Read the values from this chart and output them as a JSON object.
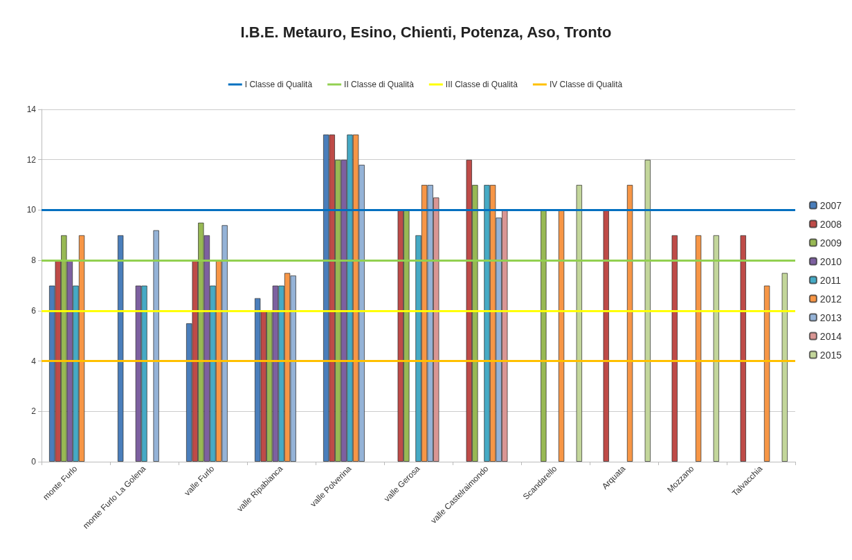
{
  "chart_data": {
    "type": "bar",
    "title": "I.B.E. Metauro, Esino, Chienti, Potenza, Aso, Tronto",
    "categories": [
      "monte Furlo",
      "monte Furlo La Golena",
      "valle Furlo",
      "valle Ripabianca",
      "valle Polverina",
      "valle Gerosa",
      "valle Castelraimondo",
      "Scandarello",
      "Arquata",
      "Mozzano",
      "Talvacchia"
    ],
    "series": [
      {
        "name": "2007",
        "color": "#4a7ebb",
        "values": [
          7,
          9,
          5.5,
          6.5,
          13,
          null,
          null,
          null,
          null,
          null,
          null
        ]
      },
      {
        "name": "2008",
        "color": "#be4b48",
        "values": [
          8,
          null,
          8,
          6,
          13,
          10,
          12,
          null,
          10,
          9,
          9
        ]
      },
      {
        "name": "2009",
        "color": "#98b954",
        "values": [
          9,
          null,
          9.5,
          6,
          12,
          10,
          11,
          10,
          null,
          null,
          null
        ]
      },
      {
        "name": "2010",
        "color": "#7d60a0",
        "values": [
          8,
          7,
          9,
          7,
          12,
          null,
          null,
          null,
          null,
          null,
          null
        ]
      },
      {
        "name": "2011",
        "color": "#46aac5",
        "values": [
          7,
          7,
          7,
          7,
          13,
          9,
          11,
          null,
          null,
          null,
          null
        ]
      },
      {
        "name": "2012",
        "color": "#f79646",
        "values": [
          9,
          null,
          8,
          7.5,
          13,
          11,
          11,
          10,
          11,
          9,
          7
        ]
      },
      {
        "name": "2013",
        "color": "#95b3d7",
        "values": [
          null,
          9.2,
          9.4,
          7.4,
          11.8,
          11,
          9.7,
          null,
          null,
          null,
          null
        ]
      },
      {
        "name": "2014",
        "color": "#d99694",
        "values": [
          null,
          null,
          null,
          null,
          null,
          10.5,
          10,
          null,
          null,
          null,
          null
        ]
      },
      {
        "name": "2015",
        "color": "#c3d69b",
        "values": [
          null,
          null,
          null,
          null,
          null,
          null,
          null,
          11,
          12,
          9,
          7.5
        ]
      }
    ],
    "ylim": [
      0,
      14
    ],
    "yticks": [
      0,
      2,
      4,
      6,
      8,
      10,
      12,
      14
    ],
    "grid": "y",
    "legend": "right",
    "ref_lines": [
      {
        "axis": "y",
        "value": 10,
        "label": "I Classe di Qualità",
        "color": "#0070c0"
      },
      {
        "axis": "y",
        "value": 8,
        "label": "II Classe di Qualità",
        "color": "#92d050"
      },
      {
        "axis": "y",
        "value": 6,
        "label": "III Classe di Qualità",
        "color": "#ffff00"
      },
      {
        "axis": "y",
        "value": 4,
        "label": "IV Classe di Qualità",
        "color": "#ffc000"
      }
    ]
  }
}
